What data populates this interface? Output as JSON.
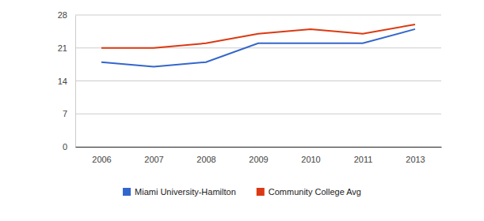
{
  "chart_data": {
    "type": "line",
    "categories": [
      "2006",
      "2007",
      "2008",
      "2009",
      "2010",
      "2011",
      "2013"
    ],
    "series": [
      {
        "name": "Miami University-Hamilton",
        "color": "#3366cc",
        "values": [
          18,
          17,
          18,
          22,
          22,
          22,
          25
        ]
      },
      {
        "name": "Community College Avg",
        "color": "#dc3912",
        "values": [
          21,
          21,
          22,
          24,
          25,
          24,
          26
        ]
      }
    ],
    "ylim": [
      0,
      28
    ],
    "yticks": [
      0,
      7,
      14,
      21,
      28
    ],
    "grid": true,
    "legend": "bottom"
  }
}
